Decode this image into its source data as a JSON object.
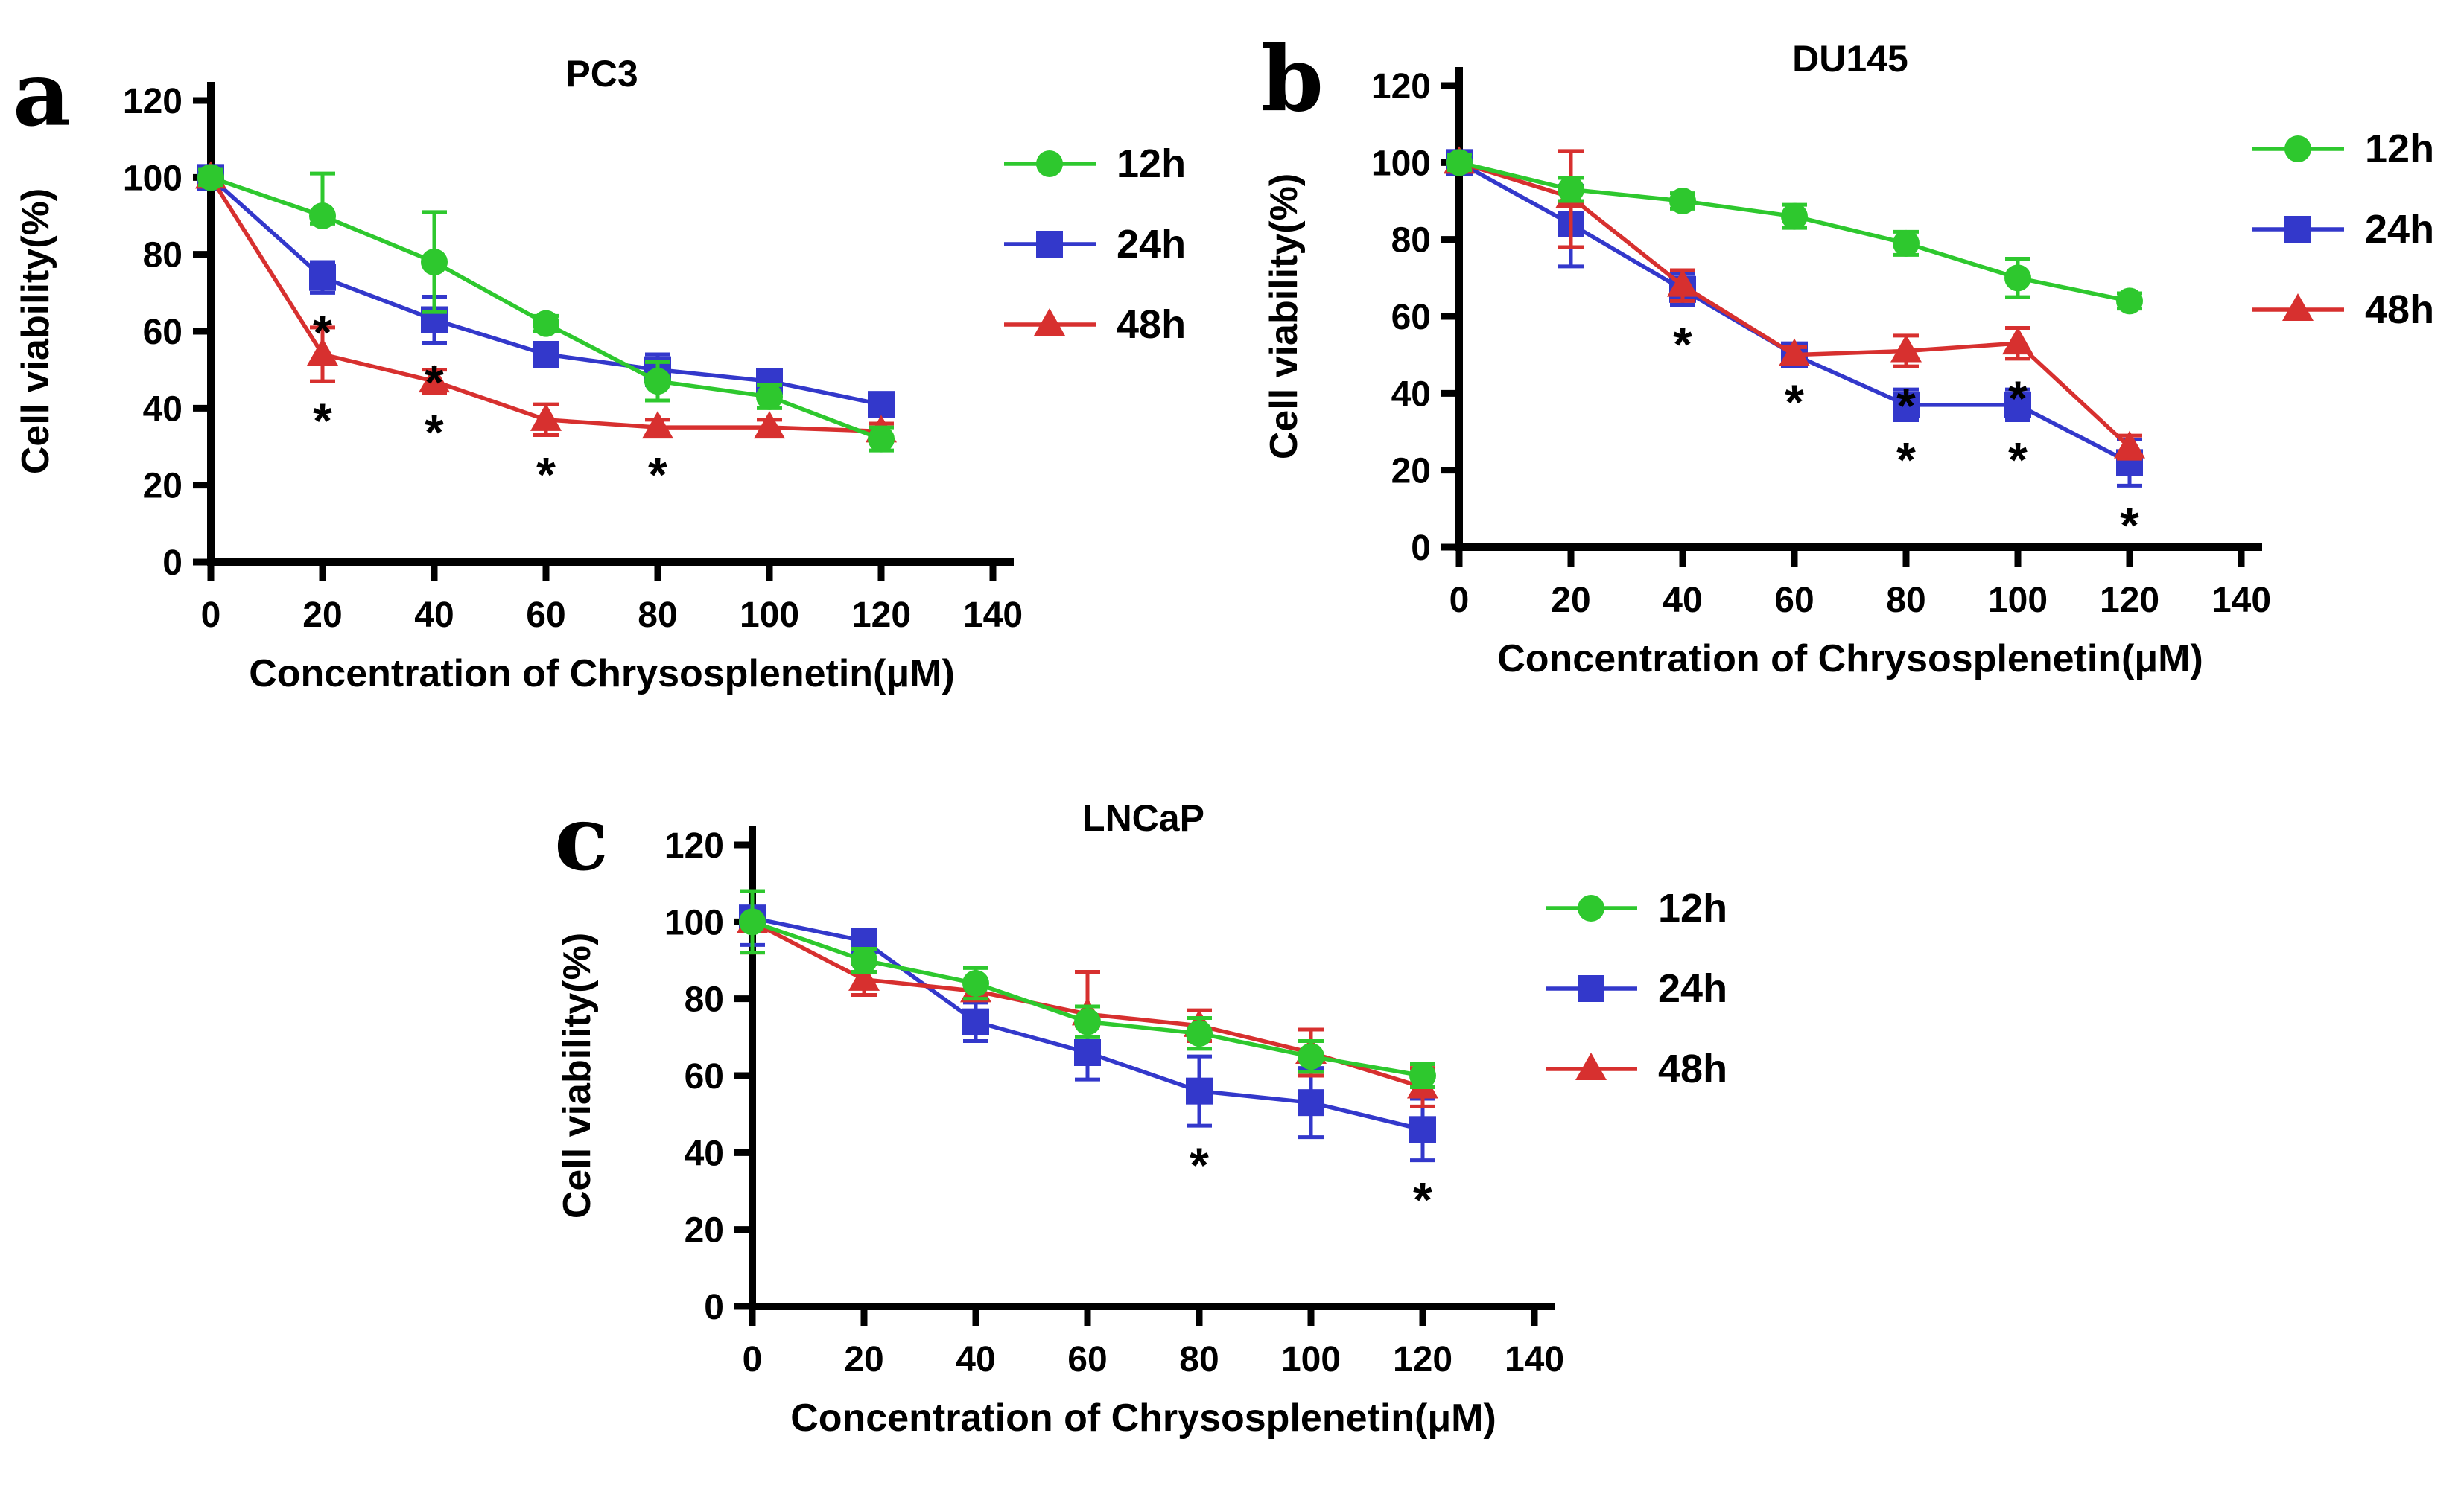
{
  "figure": {
    "background": "#ffffff",
    "text_color": "#000000",
    "series_colors": {
      "12h": "#2ec82e",
      "24h": "#3338cb",
      "48h": "#d7302f"
    },
    "series_markers": {
      "12h": "circle",
      "24h": "square",
      "48h": "triangle"
    },
    "draw_order": [
      "24h",
      "48h",
      "12h"
    ],
    "legend_order": [
      "12h",
      "24h",
      "48h"
    ],
    "significance_symbol": "*"
  },
  "chart_data": [
    {
      "type": "line",
      "panel_label": "a",
      "title": "PC3",
      "xlabel": "Concentration of Chrysosplenetin(μM)",
      "ylabel": "Cell viability(%)",
      "xlim": [
        0,
        140
      ],
      "ylim": [
        0,
        120
      ],
      "x_ticks": [
        0,
        20,
        40,
        60,
        80,
        100,
        120,
        140
      ],
      "y_ticks": [
        0,
        20,
        40,
        60,
        80,
        100,
        120
      ],
      "grid": false,
      "legend_position": "right-top",
      "x": [
        0,
        20,
        40,
        60,
        80,
        100,
        120
      ],
      "series": [
        {
          "name": "12h",
          "values": [
            100,
            90,
            78,
            62,
            47,
            43,
            32
          ],
          "err_up": [
            2,
            11,
            13,
            2,
            5,
            3,
            3
          ],
          "err_dn": [
            2,
            2,
            13,
            2,
            5,
            3,
            3
          ]
        },
        {
          "name": "24h",
          "values": [
            100,
            74,
            63,
            54,
            50,
            47,
            41
          ],
          "err_up": [
            2,
            4,
            6,
            2,
            4,
            3,
            2
          ],
          "err_dn": [
            2,
            4,
            6,
            2,
            4,
            3,
            2
          ]
        },
        {
          "name": "48h",
          "values": [
            100,
            54,
            47,
            37,
            35,
            35,
            34
          ],
          "err_up": [
            2,
            7,
            3,
            4,
            2,
            2,
            2
          ],
          "err_dn": [
            2,
            7,
            3,
            4,
            2,
            2,
            2
          ]
        }
      ],
      "significance": [
        {
          "x": 20,
          "series": "24h"
        },
        {
          "x": 20,
          "series": "48h"
        },
        {
          "x": 40,
          "series": "24h"
        },
        {
          "x": 40,
          "series": "48h"
        },
        {
          "x": 60,
          "series": "48h"
        },
        {
          "x": 80,
          "series": "48h"
        }
      ]
    },
    {
      "type": "line",
      "panel_label": "b",
      "title": "DU145",
      "xlabel": "Concentration of Chrysosplenetin(μM)",
      "ylabel": "Cell viability(%)",
      "xlim": [
        0,
        140
      ],
      "ylim": [
        0,
        120
      ],
      "x_ticks": [
        0,
        20,
        40,
        60,
        80,
        100,
        120,
        140
      ],
      "y_ticks": [
        0,
        20,
        40,
        60,
        80,
        100,
        120
      ],
      "grid": false,
      "legend_position": "right-top",
      "x": [
        0,
        20,
        40,
        60,
        80,
        100,
        120
      ],
      "series": [
        {
          "name": "12h",
          "values": [
            100,
            93,
            90,
            86,
            79,
            70,
            64
          ],
          "err_up": [
            2,
            3,
            2,
            3,
            3,
            5,
            2
          ],
          "err_dn": [
            2,
            3,
            2,
            3,
            3,
            5,
            2
          ]
        },
        {
          "name": "24h",
          "values": [
            100,
            84,
            67,
            50,
            37,
            37,
            22
          ],
          "err_up": [
            2,
            10,
            4,
            2,
            4,
            4,
            6
          ],
          "err_dn": [
            2,
            11,
            4,
            2,
            4,
            4,
            6
          ]
        },
        {
          "name": "48h",
          "values": [
            100,
            91,
            68,
            50,
            51,
            53,
            26
          ],
          "err_up": [
            2,
            12,
            4,
            2,
            4,
            4,
            3
          ],
          "err_dn": [
            2,
            13,
            4,
            2,
            4,
            4,
            3
          ]
        }
      ],
      "significance": [
        {
          "x": 40,
          "series": "24h"
        },
        {
          "x": 60,
          "series": "48h"
        },
        {
          "x": 80,
          "series": "48h"
        },
        {
          "x": 80,
          "series": "24h"
        },
        {
          "x": 100,
          "series": "48h"
        },
        {
          "x": 100,
          "series": "24h"
        },
        {
          "x": 120,
          "series": "24h"
        }
      ]
    },
    {
      "type": "line",
      "panel_label": "c",
      "title": "LNCaP",
      "xlabel": "Concentration of Chrysosplenetin(μM)",
      "ylabel": "Cell viability(%)",
      "xlim": [
        0,
        140
      ],
      "ylim": [
        0,
        120
      ],
      "x_ticks": [
        0,
        20,
        40,
        60,
        80,
        100,
        120,
        140
      ],
      "y_ticks": [
        0,
        20,
        40,
        60,
        80,
        100,
        120
      ],
      "grid": false,
      "legend_position": "right-top",
      "x": [
        0,
        20,
        40,
        60,
        80,
        100,
        120
      ],
      "series": [
        {
          "name": "12h",
          "values": [
            100,
            90,
            84,
            74,
            71,
            65,
            60
          ],
          "err_up": [
            8,
            3,
            4,
            4,
            4,
            4,
            3
          ],
          "err_dn": [
            8,
            3,
            4,
            4,
            4,
            4,
            3
          ]
        },
        {
          "name": "24h",
          "values": [
            101,
            95,
            74,
            66,
            56,
            53,
            46
          ],
          "err_up": [
            7,
            3,
            5,
            7,
            9,
            9,
            8
          ],
          "err_dn": [
            7,
            3,
            5,
            7,
            9,
            9,
            8
          ]
        },
        {
          "name": "48h",
          "values": [
            100,
            85,
            82,
            76,
            73,
            66,
            57
          ],
          "err_up": [
            8,
            4,
            2,
            11,
            4,
            6,
            5
          ],
          "err_dn": [
            8,
            4,
            2,
            3,
            4,
            6,
            5
          ]
        }
      ],
      "significance": [
        {
          "x": 80,
          "series": "24h"
        },
        {
          "x": 120,
          "series": "24h"
        }
      ]
    }
  ]
}
